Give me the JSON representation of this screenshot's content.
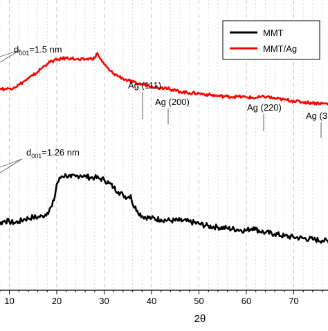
{
  "chart_data": {
    "type": "line",
    "xlabel": "2θ",
    "xlim": [
      4,
      79
    ],
    "xticks": [
      10,
      20,
      30,
      40,
      50,
      60,
      70
    ],
    "grid": "vertical dashed every 2 degrees",
    "legend_position": "top-right",
    "series": [
      {
        "name": "MMT",
        "color": "#000000",
        "x": [
          4,
          5,
          6,
          7,
          8,
          9,
          10,
          11,
          12,
          13,
          14,
          15,
          16,
          17,
          18,
          19,
          19.6,
          20,
          21,
          22,
          23,
          24,
          25,
          26,
          27,
          28,
          29,
          30,
          31,
          32,
          33,
          34,
          35,
          35.6,
          36,
          37,
          38,
          40,
          42,
          44,
          46,
          48,
          50,
          52,
          54,
          56,
          58,
          60,
          61.5,
          62,
          64,
          66,
          68,
          70,
          72,
          74,
          76,
          78,
          79
        ],
        "y": [
          66,
          45,
          30,
          28,
          30,
          33,
          32,
          31,
          32,
          34,
          35,
          36,
          36,
          37,
          40,
          46,
          55,
          66,
          73,
          74,
          72,
          73,
          74,
          73,
          72,
          72,
          71,
          70,
          67,
          63,
          59,
          56,
          54,
          56,
          48,
          42,
          37,
          35,
          34,
          33,
          33,
          32,
          30,
          28,
          27,
          26,
          25,
          24,
          27,
          25,
          22,
          21,
          19,
          18,
          17,
          16,
          15,
          14,
          14
        ]
      },
      {
        "name": "MMT/Ag",
        "color": "#ff0000",
        "x": [
          4,
          5,
          6,
          7,
          8,
          9,
          10,
          11,
          12,
          13,
          14,
          15,
          16,
          17,
          18,
          19,
          20,
          21,
          22,
          23,
          24,
          25,
          26,
          27,
          28,
          28.6,
          29,
          30,
          31,
          32,
          33,
          34,
          35,
          36,
          37,
          38,
          39,
          40,
          42,
          43.6,
          44,
          46,
          48,
          50,
          52,
          54,
          56,
          58,
          60,
          62,
          64.3,
          66,
          68,
          70,
          72,
          74,
          76,
          78,
          79
        ],
        "y": [
          165,
          135,
          118,
          112,
          111,
          110,
          111,
          113,
          117,
          122,
          127,
          132,
          138,
          145,
          151,
          155,
          157,
          159,
          160,
          160,
          158,
          157,
          158,
          159,
          160,
          168,
          161,
          150,
          141,
          135,
          131,
          127,
          124,
          121,
          119,
          118,
          117,
          115,
          112,
          113,
          109,
          106,
          104,
          103,
          101,
          99,
          98,
          98,
          97,
          96,
          98,
          95,
          93,
          91,
          89,
          88,
          87,
          86,
          85
        ]
      }
    ],
    "annotations": [
      {
        "text_main": "d",
        "text_sub": "001",
        "text_rest": "=1.5 nm"
      },
      {
        "text_main": "d",
        "text_sub": "001",
        "text_rest": "=1.26 nm"
      },
      {
        "text": "Ag (111)",
        "x": 38
      },
      {
        "text": "Ag (200)",
        "x": 43.6
      },
      {
        "text": "Ag (220)",
        "x": 64.3
      },
      {
        "text": "Ag (3",
        "x": 77.2
      }
    ]
  }
}
